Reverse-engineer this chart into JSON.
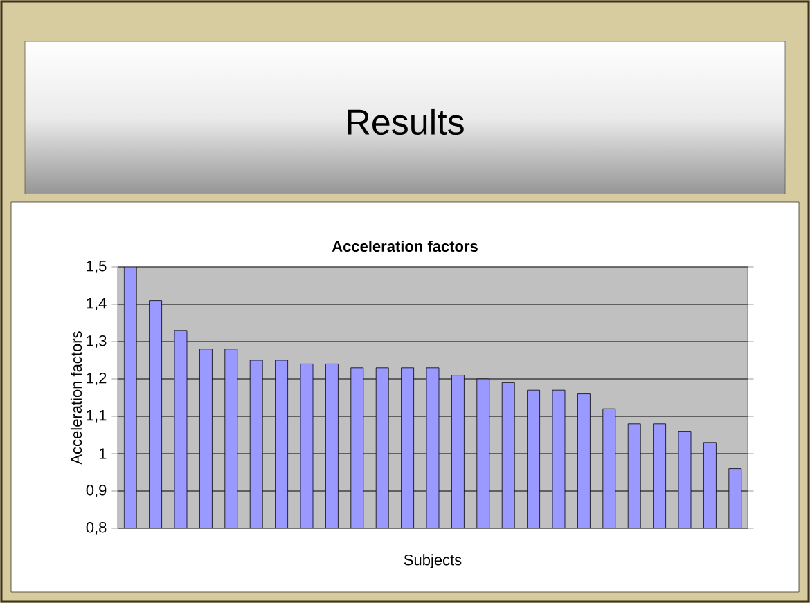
{
  "chart_data": {
    "type": "bar",
    "title": "Results",
    "subtitle": "Acceleration factors",
    "xlabel": "Subjects",
    "ylabel": "Acceleration factors",
    "categories": [
      null,
      null,
      null,
      null,
      null,
      null,
      null,
      null,
      null,
      null,
      null,
      null,
      null,
      null,
      null,
      null,
      null,
      null,
      null,
      null,
      null,
      null,
      null,
      null,
      null
    ],
    "values": [
      1.5,
      1.41,
      1.33,
      1.28,
      1.28,
      1.25,
      1.25,
      1.24,
      1.24,
      1.23,
      1.23,
      1.23,
      1.23,
      1.21,
      1.2,
      1.19,
      1.17,
      1.17,
      1.16,
      1.12,
      1.08,
      1.08,
      1.06,
      1.03,
      0.96
    ],
    "color": "#9999ff",
    "ylim": [
      0.8,
      1.5
    ],
    "yticks": [
      {
        "value": 0.8,
        "label": "0,8"
      },
      {
        "value": 0.9,
        "label": "0,9"
      },
      1,
      {
        "value": 1.1,
        "label": "1,1"
      },
      {
        "value": 1.2,
        "label": "1,2"
      },
      {
        "value": 1.3,
        "label": "1,3"
      },
      {
        "value": 1.4,
        "label": "1,4"
      },
      {
        "value": 1.5,
        "label": "1,5"
      }
    ],
    "grid": "y"
  }
}
